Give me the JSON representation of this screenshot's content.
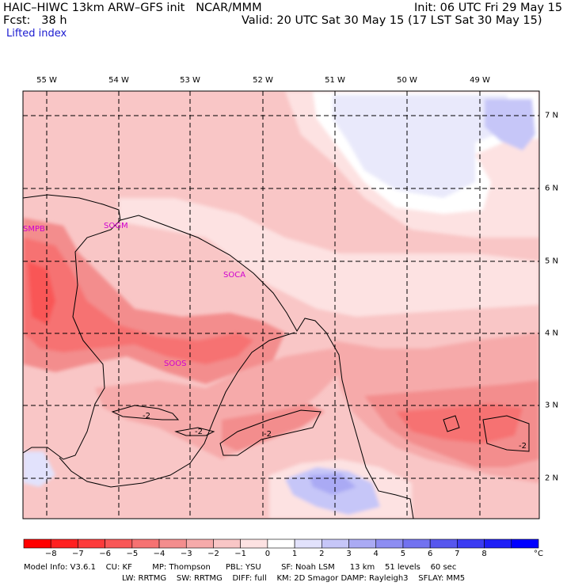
{
  "header": {
    "model": "HAIC–HIWC 13km ARW–GFS init   NCAR/MMM",
    "init": "Init: 06 UTC Fri 29 May 15",
    "fcst": "Fcst:   38 h",
    "valid": "Valid: 20 UTC Sat 30 May 15 (17 LST Sat 30 May 15)",
    "field": "Lifted index"
  },
  "axes": {
    "lon_labels": [
      "55 W",
      "54 W",
      "53 W",
      "52 W",
      "51 W",
      "50 W",
      "49 W"
    ],
    "lat_labels": [
      "7 N",
      "6 N",
      "5 N",
      "4 N",
      "3 N",
      "2 N"
    ]
  },
  "stations": [
    "SMPB",
    "SOGM",
    "SOCA",
    "SOOS"
  ],
  "contour_labels": [
    "-2",
    "-2",
    "-2",
    "-2"
  ],
  "colorbar": {
    "ticks": [
      "−8",
      "−7",
      "−6",
      "−5",
      "−4",
      "−3",
      "−2",
      "−1",
      "0",
      "1",
      "2",
      "3",
      "4",
      "5",
      "6",
      "7",
      "8"
    ],
    "unit": "°C",
    "colors": [
      "#ff0000",
      "#ff2020",
      "#fd3b3b",
      "#f95757",
      "#f67272",
      "#f38d8d",
      "#f6aaaa",
      "#f9c6c6",
      "#fde2e2",
      "#ffffff",
      "#e2e2fc",
      "#c6c6f8",
      "#aaaaf4",
      "#8d8df2",
      "#7272f0",
      "#5757ee",
      "#3b3bf2",
      "#1e1ef6",
      "#0000ff"
    ]
  },
  "model_info": {
    "line1": "Model Info: V3.6.1    CU: KF        MP: Thompson      PBL: YSU        SF: Noah LSM      13 km    51 levels    60 sec",
    "line2": "LW: RRTMG    SW: RRTMG    DIFF: full    KM: 2D Smagor DAMP: Rayleigh3    SFLAY: MM5"
  }
}
